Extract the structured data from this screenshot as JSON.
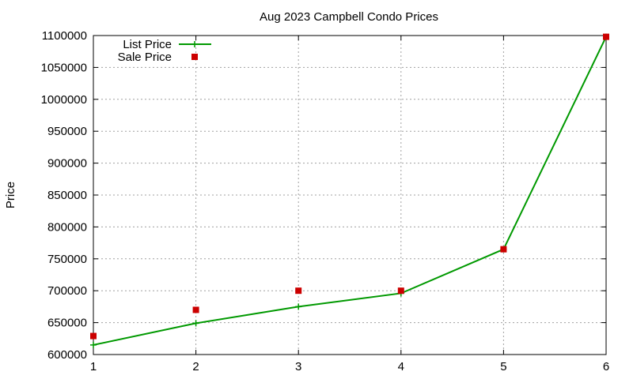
{
  "chart_data": {
    "type": "line",
    "title": "Aug 2023 Campbell Condo Prices",
    "xlabel": "",
    "ylabel": "Price",
    "x": [
      1,
      2,
      3,
      4,
      5,
      6
    ],
    "xlim": [
      1,
      6
    ],
    "ylim": [
      600000,
      1100000
    ],
    "xticks": [
      1,
      2,
      3,
      4,
      5,
      6
    ],
    "yticks": [
      600000,
      650000,
      700000,
      750000,
      800000,
      850000,
      900000,
      950000,
      1000000,
      1050000,
      1100000
    ],
    "grid": true,
    "legend_position": "top-left",
    "series": [
      {
        "name": "List Price",
        "style": "line-with-plus",
        "color": "#009900",
        "values": [
          615000,
          649000,
          675000,
          696000,
          765000,
          1098000
        ]
      },
      {
        "name": "Sale Price",
        "style": "square-markers",
        "color": "#cc0000",
        "values": [
          629000,
          670000,
          700000,
          700000,
          765000,
          1098000
        ]
      }
    ]
  }
}
